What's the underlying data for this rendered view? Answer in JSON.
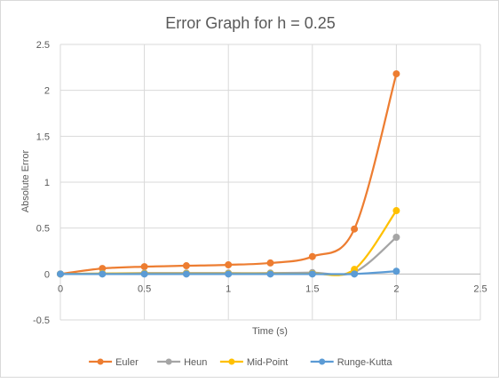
{
  "chart_data": {
    "type": "line",
    "title": "Error Graph for h = 0.25",
    "xlabel": "Time (s)",
    "ylabel": "Absolute Error",
    "xlim": [
      0,
      2.5
    ],
    "ylim": [
      -0.5,
      2.5
    ],
    "xticks": [
      0,
      0.5,
      1,
      1.5,
      2,
      2.5
    ],
    "yticks": [
      -0.5,
      0,
      0.5,
      1,
      1.5,
      2,
      2.5
    ],
    "xtick_labels": [
      "0",
      "0.5",
      "1",
      "1.5",
      "2",
      "2.5"
    ],
    "ytick_labels": [
      "-0.5",
      "0",
      "0.5",
      "1",
      "1.5",
      "2",
      "2.5"
    ],
    "grid": true,
    "legend": "bottom",
    "smooth": true,
    "x": [
      0,
      0.25,
      0.5,
      0.75,
      1,
      1.25,
      1.5,
      1.75,
      2
    ],
    "series": [
      {
        "name": "Euler",
        "color": "#ed7d31",
        "values": [
          0,
          0.06,
          0.08,
          0.09,
          0.1,
          0.12,
          0.19,
          0.49,
          2.18
        ]
      },
      {
        "name": "Heun",
        "color": "#a5a5a5",
        "values": [
          0,
          0.005,
          0.01,
          0.01,
          0.01,
          0.01,
          0.015,
          0.02,
          0.4
        ]
      },
      {
        "name": "Mid-Point",
        "color": "#ffc000",
        "values": [
          0,
          0.005,
          0.005,
          0.005,
          0.005,
          0.005,
          0.005,
          0.05,
          0.69
        ]
      },
      {
        "name": "Runge-Kutta",
        "color": "#5b9bd5",
        "values": [
          0,
          0,
          0,
          0,
          0,
          0,
          0,
          0,
          0.03
        ]
      }
    ]
  }
}
